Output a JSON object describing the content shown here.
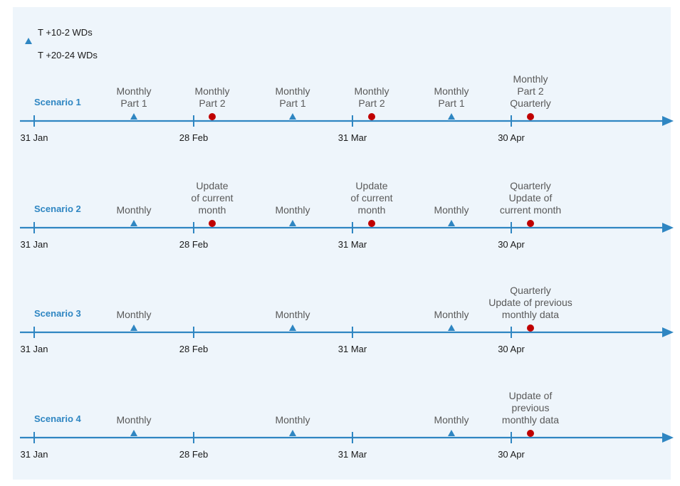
{
  "legend": [
    {
      "label": "T +10-2 WDs",
      "marker": "triangle-icon",
      "color": "#2f86c2"
    },
    {
      "label": "T +20-24 WDs",
      "marker": "circle-icon",
      "color": "#c00000"
    }
  ],
  "colors": {
    "axis": "#2f86c2",
    "triangle": "#2f86c2",
    "dot": "#c00000",
    "scenario_label": "#2f86c2",
    "annotation": "#595959",
    "background": "#eef5fb"
  },
  "dates": [
    "31 Jan",
    "28 Feb",
    "31 Mar",
    "30 Apr"
  ],
  "scenarios": [
    {
      "label": "Scenario 1",
      "events": [
        {
          "type": "triangle",
          "slot": 0,
          "text": [
            "Monthly",
            "Part 1"
          ]
        },
        {
          "type": "dot",
          "slot": 1,
          "text": [
            "Monthly",
            "Part 2"
          ]
        },
        {
          "type": "triangle",
          "slot": 2,
          "text": [
            "Monthly",
            "Part 1"
          ]
        },
        {
          "type": "dot",
          "slot": 3,
          "text": [
            "Monthly",
            "Part 2"
          ]
        },
        {
          "type": "triangle",
          "slot": 4,
          "text": [
            "Monthly",
            "Part 1"
          ]
        },
        {
          "type": "dot",
          "slot": 5,
          "text": [
            "Monthly",
            "Part 2",
            "Quarterly"
          ]
        }
      ]
    },
    {
      "label": "Scenario 2",
      "events": [
        {
          "type": "triangle",
          "slot": 0,
          "text": [
            "Monthly"
          ]
        },
        {
          "type": "dot",
          "slot": 1,
          "text": [
            "Update",
            "of current",
            "month"
          ]
        },
        {
          "type": "triangle",
          "slot": 2,
          "text": [
            "Monthly"
          ]
        },
        {
          "type": "dot",
          "slot": 3,
          "text": [
            "Update",
            "of current",
            "month"
          ]
        },
        {
          "type": "triangle",
          "slot": 4,
          "text": [
            "Monthly"
          ]
        },
        {
          "type": "dot",
          "slot": 5,
          "text": [
            "Quarterly",
            "Update of",
            "current month"
          ]
        }
      ]
    },
    {
      "label": "Scenario 3",
      "events": [
        {
          "type": "triangle",
          "slot": 0,
          "text": [
            "Monthly"
          ]
        },
        {
          "type": "triangle",
          "slot": 2,
          "text": [
            "Monthly"
          ]
        },
        {
          "type": "triangle",
          "slot": 4,
          "text": [
            "Monthly"
          ]
        },
        {
          "type": "dot",
          "slot": 5,
          "text": [
            "Quarterly",
            "Update of previous",
            "monthly data"
          ]
        }
      ]
    },
    {
      "label": "Scenario 4",
      "events": [
        {
          "type": "triangle",
          "slot": 0,
          "text": [
            "Monthly"
          ]
        },
        {
          "type": "triangle",
          "slot": 2,
          "text": [
            "Monthly"
          ]
        },
        {
          "type": "triangle",
          "slot": 4,
          "text": [
            "Monthly"
          ]
        },
        {
          "type": "dot",
          "slot": 5,
          "text": [
            "Update of",
            "previous",
            "monthly data"
          ]
        }
      ]
    }
  ]
}
